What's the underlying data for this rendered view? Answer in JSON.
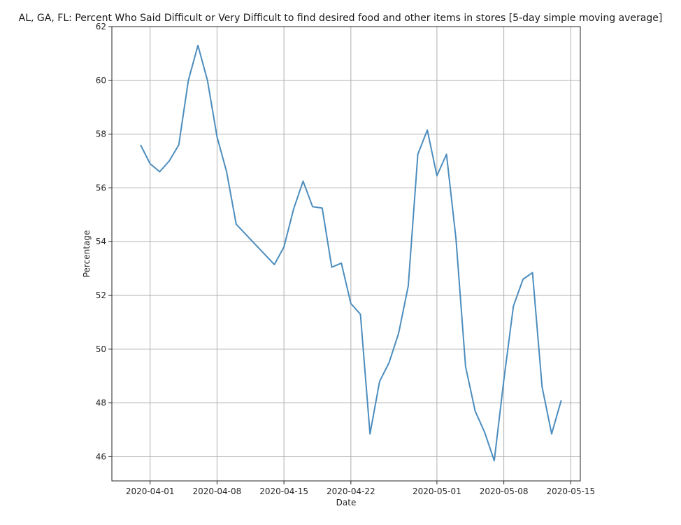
{
  "chart_data": {
    "type": "line",
    "title": "AL, GA, FL: Percent Who Said Difficult or Very Difficult to find desired food and other items in stores [5-day simple moving average]",
    "xlabel": "Date",
    "ylabel": "Percentage",
    "xlim": [
      "2020-03-28",
      "2020-05-16"
    ],
    "ylim": [
      45.1,
      62.0
    ],
    "grid": true,
    "x_ticks": [
      "2020-04-01",
      "2020-04-08",
      "2020-04-15",
      "2020-04-22",
      "2020-05-01",
      "2020-05-08",
      "2020-05-15"
    ],
    "y_ticks": [
      46,
      48,
      50,
      52,
      54,
      56,
      58,
      60,
      62
    ],
    "colors": {
      "line": "#4c8dbe",
      "grid": "#b0b0b0",
      "axis": "#262626"
    },
    "series": [
      {
        "x": [
          "2020-03-31",
          "2020-04-01",
          "2020-04-02",
          "2020-04-03",
          "2020-04-04",
          "2020-04-05",
          "2020-04-06",
          "2020-04-07",
          "2020-04-08",
          "2020-04-09",
          "2020-04-10",
          "2020-04-14",
          "2020-04-15",
          "2020-04-16",
          "2020-04-17",
          "2020-04-18",
          "2020-04-19",
          "2020-04-20",
          "2020-04-21",
          "2020-04-22",
          "2020-04-23",
          "2020-04-24",
          "2020-04-25",
          "2020-04-26",
          "2020-04-27",
          "2020-04-28",
          "2020-04-29",
          "2020-04-30",
          "2020-05-01",
          "2020-05-02",
          "2020-05-03",
          "2020-05-04",
          "2020-05-05",
          "2020-05-06",
          "2020-05-07",
          "2020-05-08",
          "2020-05-09",
          "2020-05-10",
          "2020-05-11",
          "2020-05-12",
          "2020-05-13",
          "2020-05-14"
        ],
        "values": [
          57.6,
          56.9,
          56.6,
          57.0,
          57.6,
          60.0,
          61.3,
          60.0,
          57.9,
          56.6,
          54.65,
          53.15,
          53.8,
          55.2,
          56.25,
          55.3,
          55.25,
          53.05,
          53.2,
          51.7,
          51.3,
          46.85,
          48.8,
          49.5,
          50.6,
          52.35,
          57.25,
          58.15,
          56.45,
          57.25,
          54.1,
          49.35,
          47.7,
          46.9,
          45.85,
          48.85,
          51.6,
          52.6,
          52.85,
          48.6,
          46.85,
          48.1
        ]
      }
    ]
  }
}
